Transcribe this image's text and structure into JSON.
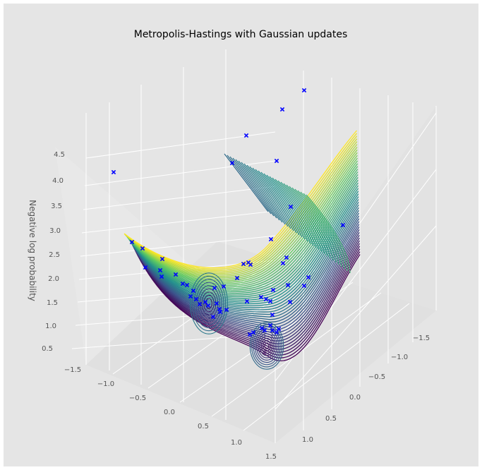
{
  "chart_data": {
    "type": "scatter",
    "title": "Metropolis-Hastings with Gaussian updates",
    "xlabel": "",
    "ylabel": "",
    "zlabel": "Negative log probability",
    "x_ticks": [
      "−1.5",
      "−1.0",
      "−0.5",
      "0.0",
      "0.5",
      "1.0",
      "1.5"
    ],
    "y_ticks": [
      "−1.5",
      "−1.0",
      "−0.5",
      "0.0",
      "0.5",
      "1.0"
    ],
    "z_ticks": [
      "0.5",
      "1.0",
      "1.5",
      "2.0",
      "2.5",
      "3.0",
      "3.5",
      "4.0",
      "4.5"
    ],
    "xlim": [
      -1.7,
      1.7
    ],
    "ylim": [
      -1.7,
      1.3
    ],
    "zlim": [
      0.5,
      4.6
    ],
    "grid": true,
    "surface": {
      "kind": "contour3d",
      "colormap": "viridis",
      "function": "negative log of a mixture of two Gaussian bumps",
      "minima": [
        [
          -0.45,
          0.2
        ],
        [
          0.55,
          -0.05
        ]
      ]
    },
    "marker": {
      "symbol": "x",
      "color": "#0000ff"
    },
    "samples_note": "approximate sample positions read from the image",
    "samples": []
  }
}
